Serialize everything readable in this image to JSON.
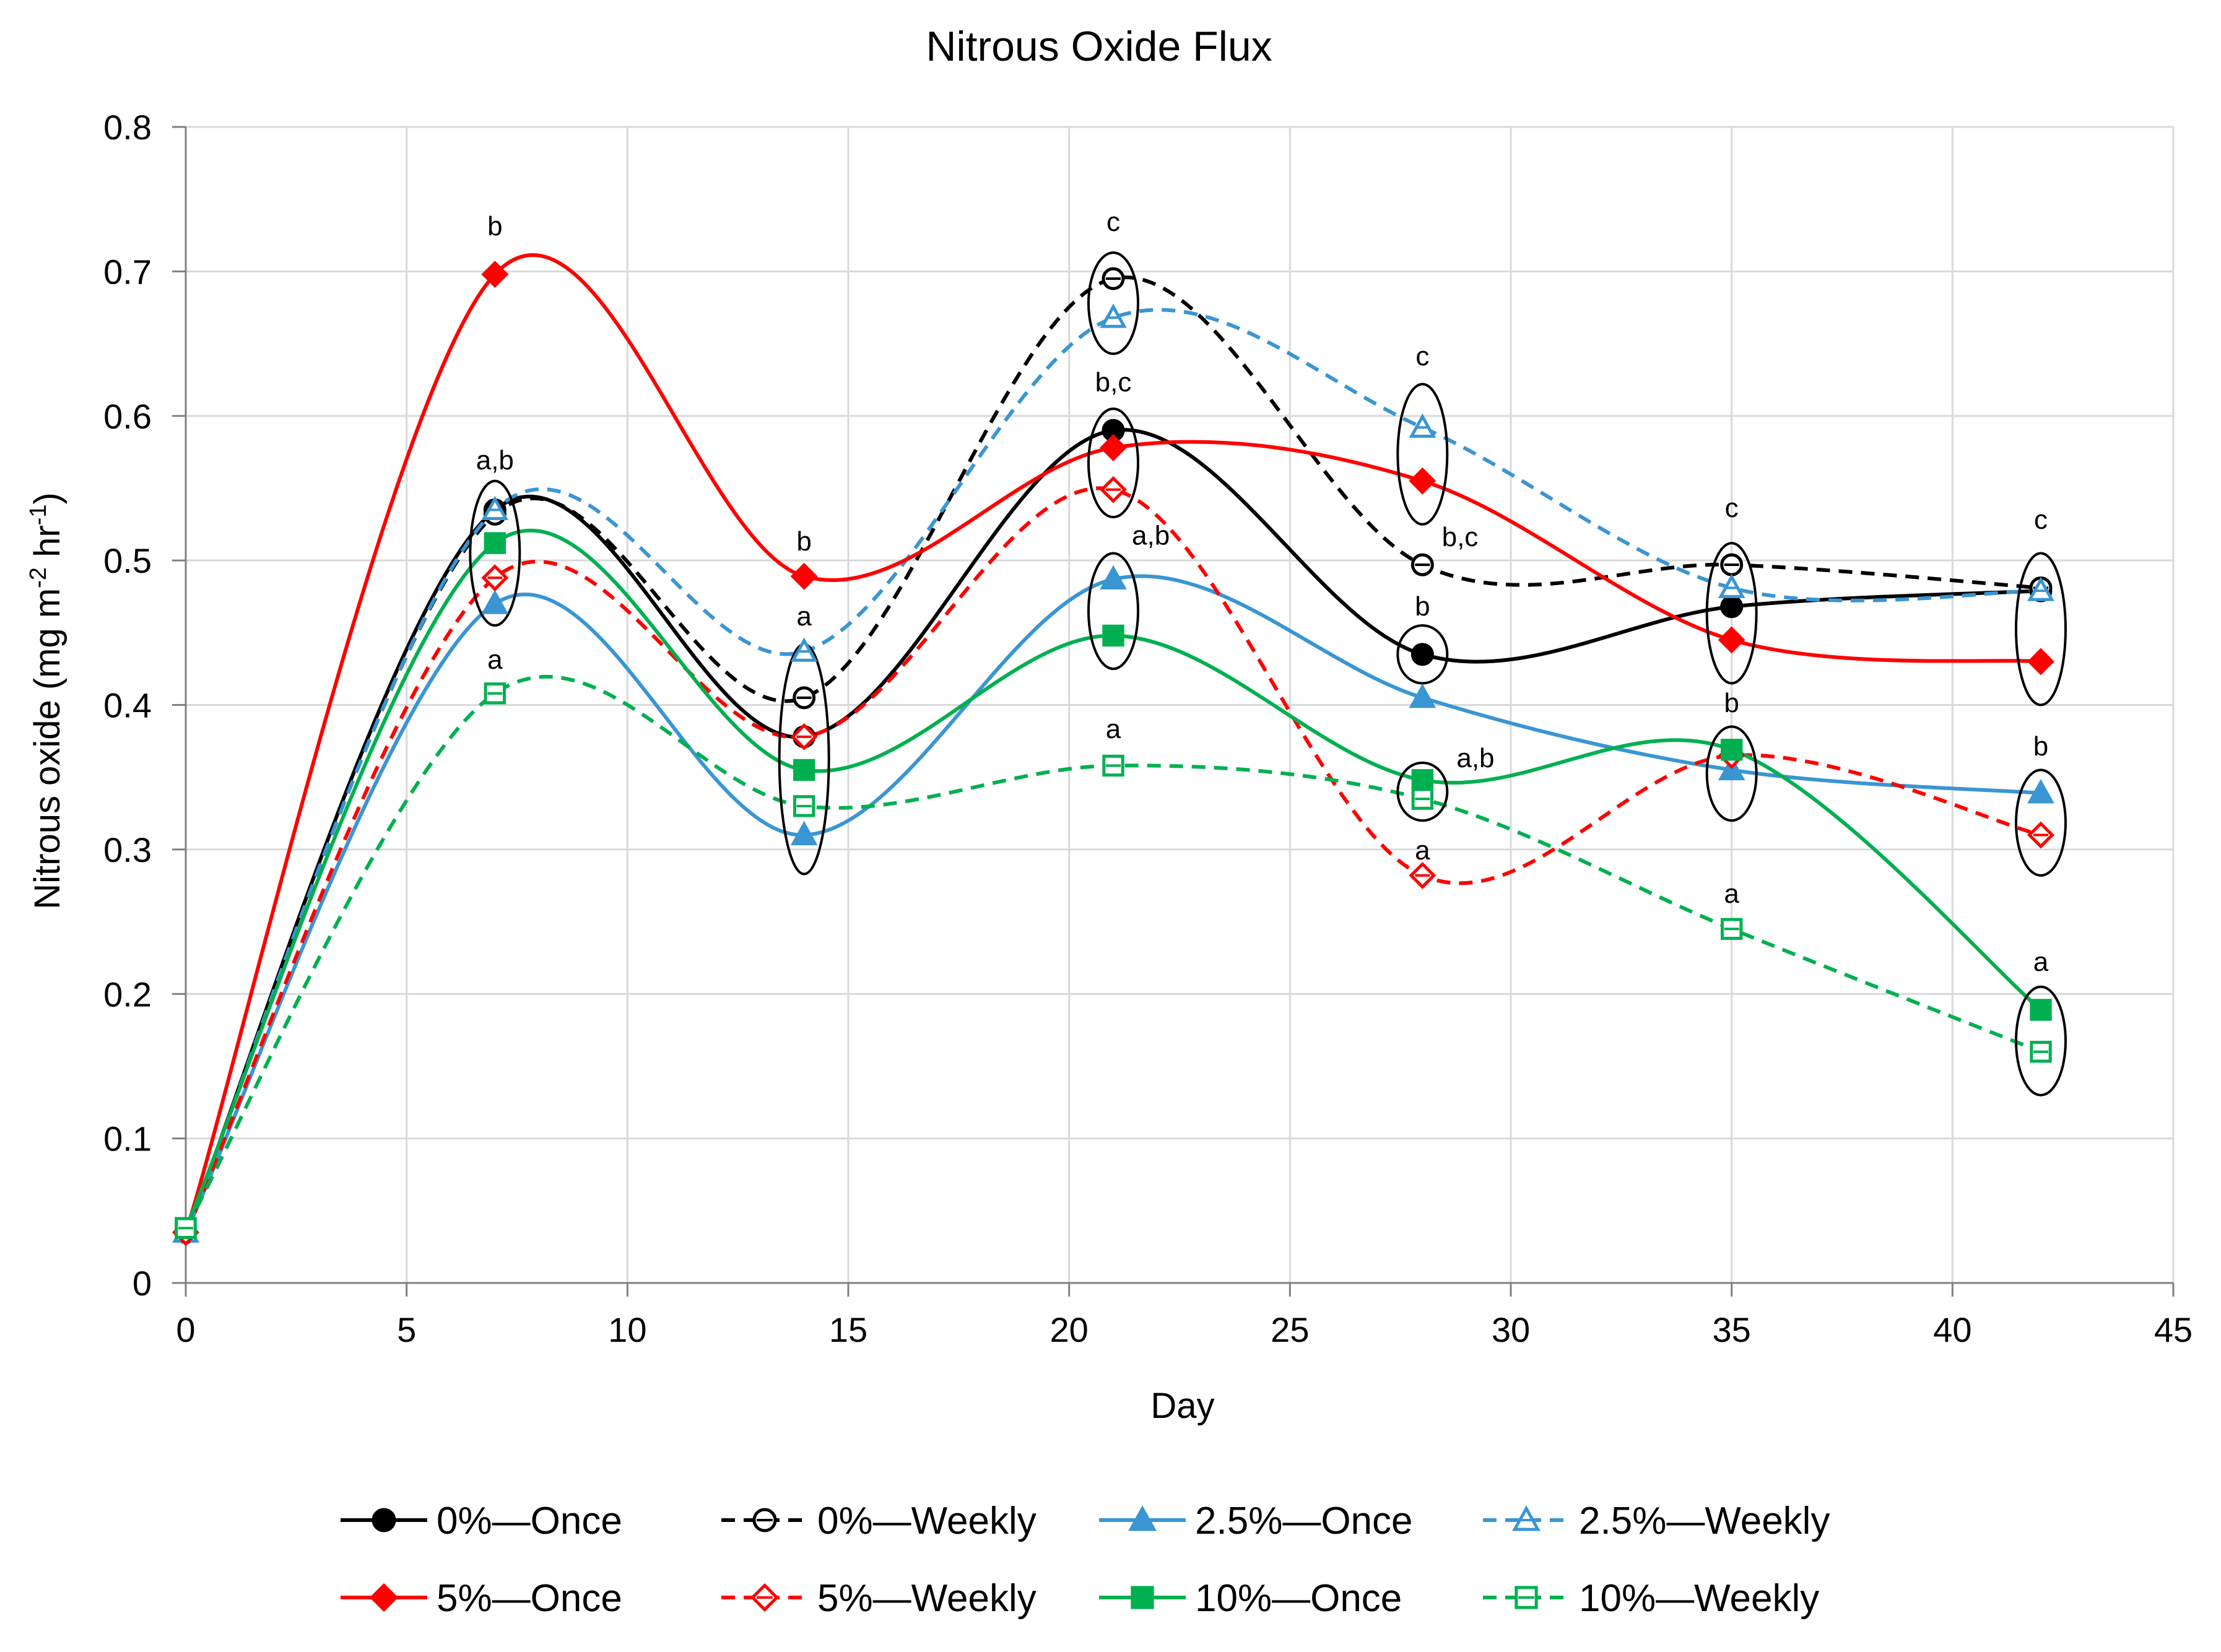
{
  "chart_data": {
    "type": "line",
    "title": "Nitrous Oxide Flux",
    "xlabel": "Day",
    "ylabel": {
      "main": "Nitrous oxide (mg m",
      "sup1": "-2",
      "mid": " hr",
      "sup2": "-1",
      "end": ")"
    },
    "xlim": [
      0,
      45
    ],
    "ylim": [
      0,
      0.8
    ],
    "xticks": [
      0,
      5,
      10,
      15,
      20,
      25,
      30,
      35,
      40,
      45
    ],
    "xtick_labels": [
      "0",
      "5",
      "10",
      "15",
      "20",
      "25",
      "30",
      "35",
      "40",
      "45"
    ],
    "yticks": [
      0,
      0.1,
      0.2,
      0.3,
      0.4,
      0.5,
      0.6,
      0.7,
      0.8
    ],
    "ytick_labels": [
      "0",
      "0.1",
      "0.2",
      "0.3",
      "0.4",
      "0.5",
      "0.6",
      "0.7",
      "0.8"
    ],
    "grid": true,
    "legend_position": "bottom",
    "x": [
      0,
      7,
      14,
      21,
      28,
      35,
      42
    ],
    "series": [
      {
        "name": "0%—Once",
        "color": "#000000",
        "dashed": false,
        "marker": "circle",
        "filled": true,
        "values": [
          0.035,
          0.535,
          0.378,
          0.59,
          0.435,
          0.468,
          0.479
        ]
      },
      {
        "name": "0%—Weekly",
        "color": "#000000",
        "dashed": true,
        "marker": "circle-bar",
        "filled": false,
        "values": [
          0.035,
          0.532,
          0.405,
          0.695,
          0.497,
          0.497,
          0.481
        ]
      },
      {
        "name": "2.5%—Once",
        "color": "#3a95d3",
        "dashed": false,
        "marker": "triangle",
        "filled": true,
        "values": [
          0.035,
          0.47,
          0.31,
          0.487,
          0.405,
          0.355,
          0.339
        ]
      },
      {
        "name": "2.5%—Weekly",
        "color": "#3a95d3",
        "dashed": true,
        "marker": "triangle-bar",
        "filled": false,
        "values": [
          0.035,
          0.535,
          0.437,
          0.668,
          0.592,
          0.481,
          0.479
        ]
      },
      {
        "name": "5%—Once",
        "color": "#ff0000",
        "dashed": false,
        "marker": "diamond",
        "filled": true,
        "values": [
          0.035,
          0.698,
          0.489,
          0.578,
          0.555,
          0.445,
          0.43
        ]
      },
      {
        "name": "5%—Weekly",
        "color": "#ff0000",
        "dashed": true,
        "marker": "diamond-bar",
        "filled": false,
        "values": [
          0.035,
          0.488,
          0.378,
          0.549,
          0.282,
          0.365,
          0.31
        ]
      },
      {
        "name": "10%—Once",
        "color": "#00b050",
        "dashed": false,
        "marker": "square",
        "filled": true,
        "values": [
          0.038,
          0.512,
          0.355,
          0.448,
          0.348,
          0.369,
          0.189
        ]
      },
      {
        "name": "10%—Weekly",
        "color": "#00b050",
        "dashed": true,
        "marker": "square-bar",
        "filled": false,
        "values": [
          0.038,
          0.408,
          0.33,
          0.358,
          0.335,
          0.245,
          0.16
        ]
      }
    ],
    "annotations": [
      {
        "text": "b",
        "x": 7,
        "y": 0.725
      },
      {
        "text": "a,b",
        "x": 7,
        "y": 0.563
      },
      {
        "text": "a",
        "x": 7,
        "y": 0.425
      },
      {
        "text": "b",
        "x": 14,
        "y": 0.507
      },
      {
        "text": "a",
        "x": 14,
        "y": 0.455
      },
      {
        "text": "c",
        "x": 21,
        "y": 0.728
      },
      {
        "text": "b,c",
        "x": 21,
        "y": 0.617
      },
      {
        "text": "a,b",
        "x": 21.85,
        "y": 0.511
      },
      {
        "text": "a",
        "x": 21,
        "y": 0.377
      },
      {
        "text": "c",
        "x": 28,
        "y": 0.635
      },
      {
        "text": "b,c",
        "x": 28.85,
        "y": 0.51
      },
      {
        "text": "b",
        "x": 28,
        "y": 0.462
      },
      {
        "text": "a,b",
        "x": 29.2,
        "y": 0.357
      },
      {
        "text": "a",
        "x": 28,
        "y": 0.293
      },
      {
        "text": "c",
        "x": 35,
        "y": 0.53
      },
      {
        "text": "b",
        "x": 35,
        "y": 0.395
      },
      {
        "text": "a",
        "x": 35,
        "y": 0.263
      },
      {
        "text": "c",
        "x": 42,
        "y": 0.522
      },
      {
        "text": "b",
        "x": 42,
        "y": 0.365
      },
      {
        "text": "a",
        "x": 42,
        "y": 0.216
      }
    ],
    "grouping_ellipses": [
      {
        "x": 7,
        "y_top": 0.555,
        "y_bottom": 0.455
      },
      {
        "x": 14,
        "y_top": 0.442,
        "y_bottom": 0.283
      },
      {
        "x": 21,
        "y_top": 0.713,
        "y_bottom": 0.643
      },
      {
        "x": 21,
        "y_top": 0.605,
        "y_bottom": 0.53
      },
      {
        "x": 21,
        "y_top": 0.505,
        "y_bottom": 0.425
      },
      {
        "x": 28,
        "y_top": 0.622,
        "y_bottom": 0.525
      },
      {
        "x": 28,
        "y_top": 0.455,
        "y_bottom": 0.415
      },
      {
        "x": 28,
        "y_top": 0.36,
        "y_bottom": 0.32
      },
      {
        "x": 35,
        "y_top": 0.512,
        "y_bottom": 0.415
      },
      {
        "x": 35,
        "y_top": 0.385,
        "y_bottom": 0.32
      },
      {
        "x": 42,
        "y_top": 0.505,
        "y_bottom": 0.4
      },
      {
        "x": 42,
        "y_top": 0.355,
        "y_bottom": 0.282
      },
      {
        "x": 42,
        "y_top": 0.205,
        "y_bottom": 0.13
      }
    ]
  }
}
